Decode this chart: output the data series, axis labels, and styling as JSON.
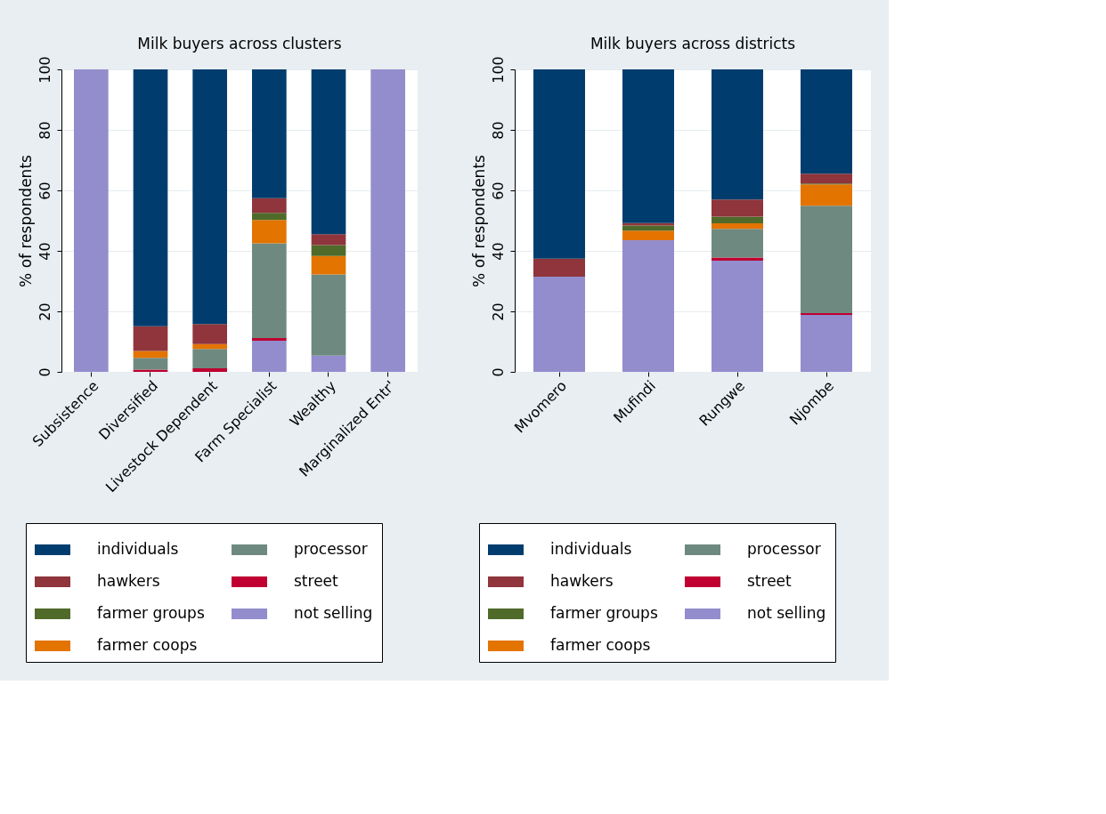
{
  "chart_data": [
    {
      "type": "bar",
      "stacked": true,
      "title": "Milk buyers across clusters",
      "ylabel": "% of respondents",
      "categories": [
        "Subsistence",
        "Diversified",
        "Livestock Dependent",
        "Farm Specialist",
        "Wealthy",
        "Marginalized Entr'"
      ],
      "ylim": [
        0,
        100
      ],
      "yticks": [
        0,
        20,
        40,
        60,
        80,
        100
      ],
      "grid": "y",
      "legend": "bottom",
      "series": [
        {
          "name": " not selling",
          "color": "#938dcd",
          "values": [
            100,
            0,
            0,
            10.3,
            5.4,
            100
          ]
        },
        {
          "name": "street",
          "color": "#bf0031",
          "values": [
            0,
            0.7,
            1.2,
            0.9,
            0,
            0
          ]
        },
        {
          "name": "processor",
          "color": "#6e8a80",
          "values": [
            0,
            3.9,
            6.4,
            31.3,
            26.8,
            0
          ]
        },
        {
          "name": "farmer coops",
          "color": "#e37400",
          "values": [
            0,
            2.3,
            1.6,
            7.7,
            6.1,
            0
          ]
        },
        {
          "name": "farmer groups",
          "color": "#506a2a",
          "values": [
            0,
            0,
            0,
            2.4,
            3.6,
            0
          ]
        },
        {
          "name": "hawkers",
          "color": "#8f353b",
          "values": [
            0,
            8.2,
            6.6,
            4.8,
            3.6,
            0
          ]
        },
        {
          "name": "individuals",
          "color": "#003d6e",
          "values": [
            0,
            84.9,
            84.2,
            42.6,
            54.5,
            0
          ]
        }
      ]
    },
    {
      "type": "bar",
      "stacked": true,
      "title": "Milk buyers across districts",
      "ylabel": "% of respondents",
      "categories": [
        "Mvomero",
        "Mufindi",
        "Rungwe",
        "Njombe"
      ],
      "ylim": [
        0,
        100
      ],
      "yticks": [
        0,
        20,
        40,
        60,
        80,
        100
      ],
      "grid": "y",
      "legend": "bottom",
      "series": [
        {
          "name": " not selling",
          "color": "#938dcd",
          "values": [
            31.5,
            43.5,
            36.8,
            18.8
          ]
        },
        {
          "name": "street",
          "color": "#bf0031",
          "values": [
            0,
            0,
            1.0,
            0.6
          ]
        },
        {
          "name": "processor",
          "color": "#6e8a80",
          "values": [
            0,
            0,
            9.5,
            35.5
          ]
        },
        {
          "name": "farmer coops",
          "color": "#e37400",
          "values": [
            0,
            3.2,
            1.8,
            7.1
          ]
        },
        {
          "name": "farmer groups",
          "color": "#506a2a",
          "values": [
            0,
            1.7,
            2.2,
            0.3
          ]
        },
        {
          "name": "hawkers",
          "color": "#8f353b",
          "values": [
            5.9,
            0.8,
            5.7,
            3.2
          ]
        },
        {
          "name": "individuals",
          "color": "#003d6e",
          "values": [
            62.6,
            50.8,
            43.0,
            34.5
          ]
        }
      ]
    }
  ]
}
